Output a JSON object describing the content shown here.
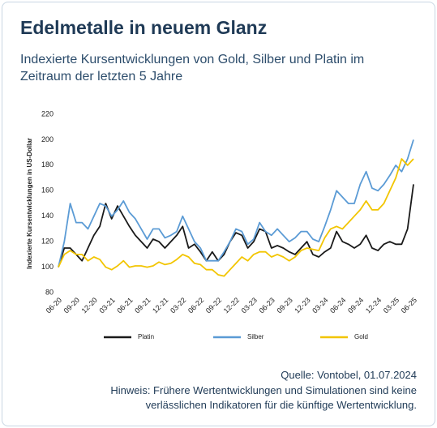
{
  "chart_data": {
    "type": "line",
    "title": "Edelmetalle in neuem Glanz",
    "subtitle": "Indexierte Kursentwicklungen von Gold, Silber und Platin im Zeitraum der letzten 5 Jahre",
    "y_label": "Indexierte Kursentwicklungen in US-Dollar",
    "source": "Quelle: Vontobel, 01.07.2024",
    "note": "Hinweis: Frühere Wertentwicklungen und Simulationen sind keine verlässlichen Indikatoren für die künftige Wertentwicklung.",
    "categories": [
      "06-20",
      null,
      null,
      "09-20",
      null,
      null,
      "12-20",
      null,
      null,
      "03-21",
      null,
      null,
      "06-21",
      null,
      null,
      "09-21",
      null,
      null,
      "12-21",
      null,
      null,
      "03-22",
      null,
      null,
      "06-22",
      null,
      null,
      "09-22",
      null,
      null,
      "12-22",
      null,
      null,
      "03-23",
      null,
      null,
      "06-23",
      null,
      null,
      "09-23",
      null,
      null,
      "12-23",
      null,
      null,
      "03-24",
      null,
      null,
      "06-24",
      null,
      null,
      "09-24",
      null,
      null,
      "12-24",
      null,
      null,
      "03-25",
      null,
      null,
      "06-25"
    ],
    "ylim": [
      80,
      220
    ],
    "yticks": [
      80,
      100,
      120,
      140,
      160,
      180,
      200,
      220
    ],
    "grid": false,
    "legend": "bottom",
    "series": [
      {
        "name": "Platin",
        "color": "#1a1a1a",
        "values": [
          100,
          115,
          115,
          110,
          105,
          115,
          125,
          132,
          150,
          138,
          148,
          140,
          132,
          125,
          120,
          115,
          122,
          120,
          115,
          120,
          125,
          132,
          115,
          118,
          112,
          105,
          112,
          105,
          110,
          120,
          127,
          125,
          115,
          120,
          130,
          128,
          115,
          117,
          115,
          112,
          110,
          115,
          120,
          110,
          108,
          112,
          115,
          128,
          120,
          118,
          115,
          118,
          125,
          115,
          113,
          118,
          120,
          118,
          118,
          130,
          165
        ]
      },
      {
        "name": "Silber",
        "color": "#5b9bd5",
        "values": [
          100,
          120,
          150,
          135,
          135,
          130,
          140,
          150,
          148,
          140,
          145,
          152,
          143,
          138,
          130,
          122,
          130,
          130,
          123,
          125,
          128,
          140,
          130,
          120,
          115,
          105,
          105,
          105,
          112,
          120,
          130,
          128,
          118,
          122,
          135,
          128,
          125,
          130,
          125,
          120,
          123,
          128,
          128,
          122,
          120,
          132,
          145,
          160,
          155,
          150,
          150,
          165,
          175,
          162,
          160,
          165,
          172,
          180,
          175,
          185,
          200
        ]
      },
      {
        "name": "Gold",
        "color": "#f2c500",
        "values": [
          100,
          110,
          113,
          110,
          110,
          105,
          108,
          106,
          100,
          98,
          101,
          105,
          100,
          101,
          101,
          100,
          101,
          104,
          102,
          103,
          106,
          110,
          108,
          103,
          102,
          98,
          98,
          94,
          93,
          98,
          103,
          108,
          105,
          110,
          112,
          112,
          108,
          110,
          108,
          105,
          108,
          113,
          115,
          114,
          113,
          123,
          130,
          132,
          130,
          135,
          140,
          145,
          152,
          145,
          145,
          150,
          160,
          170,
          185,
          180,
          185
        ]
      }
    ]
  }
}
